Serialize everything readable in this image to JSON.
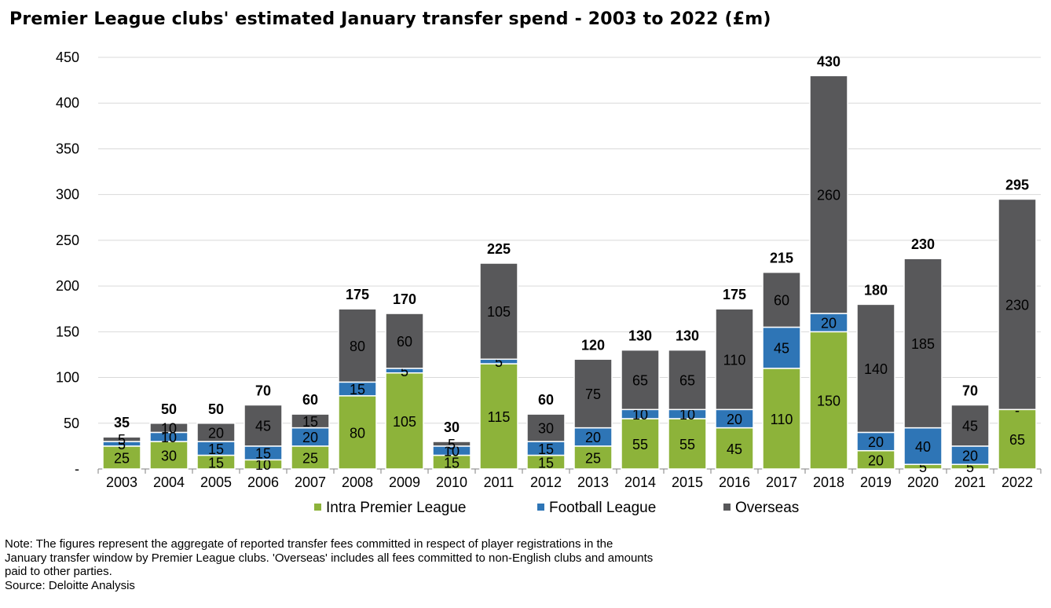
{
  "header": {
    "title": "Premier League clubs' estimated January transfer spend - 2003 to 2022 (£m)"
  },
  "colors": {
    "intra": "#8db33a",
    "football_league": "#2e75b6",
    "overseas": "#58585a",
    "grid": "#d9d9d9",
    "axis": "#808080"
  },
  "legend": [
    {
      "label": "Intra Premier League",
      "color": "#8db33a"
    },
    {
      "label": "Football League",
      "color": "#2e75b6"
    },
    {
      "label": "Overseas",
      "color": "#58585a"
    }
  ],
  "footer": {
    "note_lines": [
      "Note: The figures represent the aggregate of reported transfer fees committed in respect of player registrations in the",
      "January transfer window by Premier League clubs. 'Overseas' includes all fees committed to non-English clubs and amounts",
      "paid to other parties."
    ],
    "source": "Source: Deloitte Analysis"
  },
  "chart_data": {
    "type": "bar",
    "stacked": true,
    "title": "Premier League clubs' estimated January transfer spend - 2003 to 2022 (£m)",
    "categories": [
      "2003",
      "2004",
      "2005",
      "2006",
      "2007",
      "2008",
      "2009",
      "2010",
      "2011",
      "2012",
      "2013",
      "2014",
      "2015",
      "2016",
      "2017",
      "2018",
      "2019",
      "2020",
      "2021",
      "2022"
    ],
    "series": [
      {
        "name": "Intra Premier League",
        "values": [
          25,
          30,
          15,
          10,
          25,
          80,
          105,
          15,
          115,
          15,
          25,
          55,
          55,
          45,
          110,
          150,
          20,
          5,
          5,
          65
        ]
      },
      {
        "name": "Football League",
        "values": [
          5,
          10,
          15,
          15,
          20,
          15,
          5,
          10,
          5,
          15,
          20,
          10,
          10,
          20,
          45,
          20,
          20,
          40,
          20,
          0
        ]
      },
      {
        "name": "Overseas",
        "values": [
          5,
          10,
          20,
          45,
          15,
          80,
          60,
          5,
          105,
          30,
          75,
          65,
          65,
          110,
          60,
          260,
          140,
          185,
          45,
          230
        ]
      }
    ],
    "totals": [
      35,
      50,
      50,
      70,
      60,
      175,
      170,
      30,
      225,
      60,
      120,
      130,
      130,
      175,
      215,
      430,
      180,
      230,
      70,
      295
    ],
    "ylim": [
      0,
      450
    ],
    "yticks": [
      0,
      50,
      100,
      150,
      200,
      250,
      300,
      350,
      400,
      450
    ],
    "ytick_labels": [
      "-",
      "50",
      "100",
      "150",
      "200",
      "250",
      "300",
      "350",
      "400",
      "450"
    ],
    "grid": true,
    "legend_position": "bottom"
  }
}
